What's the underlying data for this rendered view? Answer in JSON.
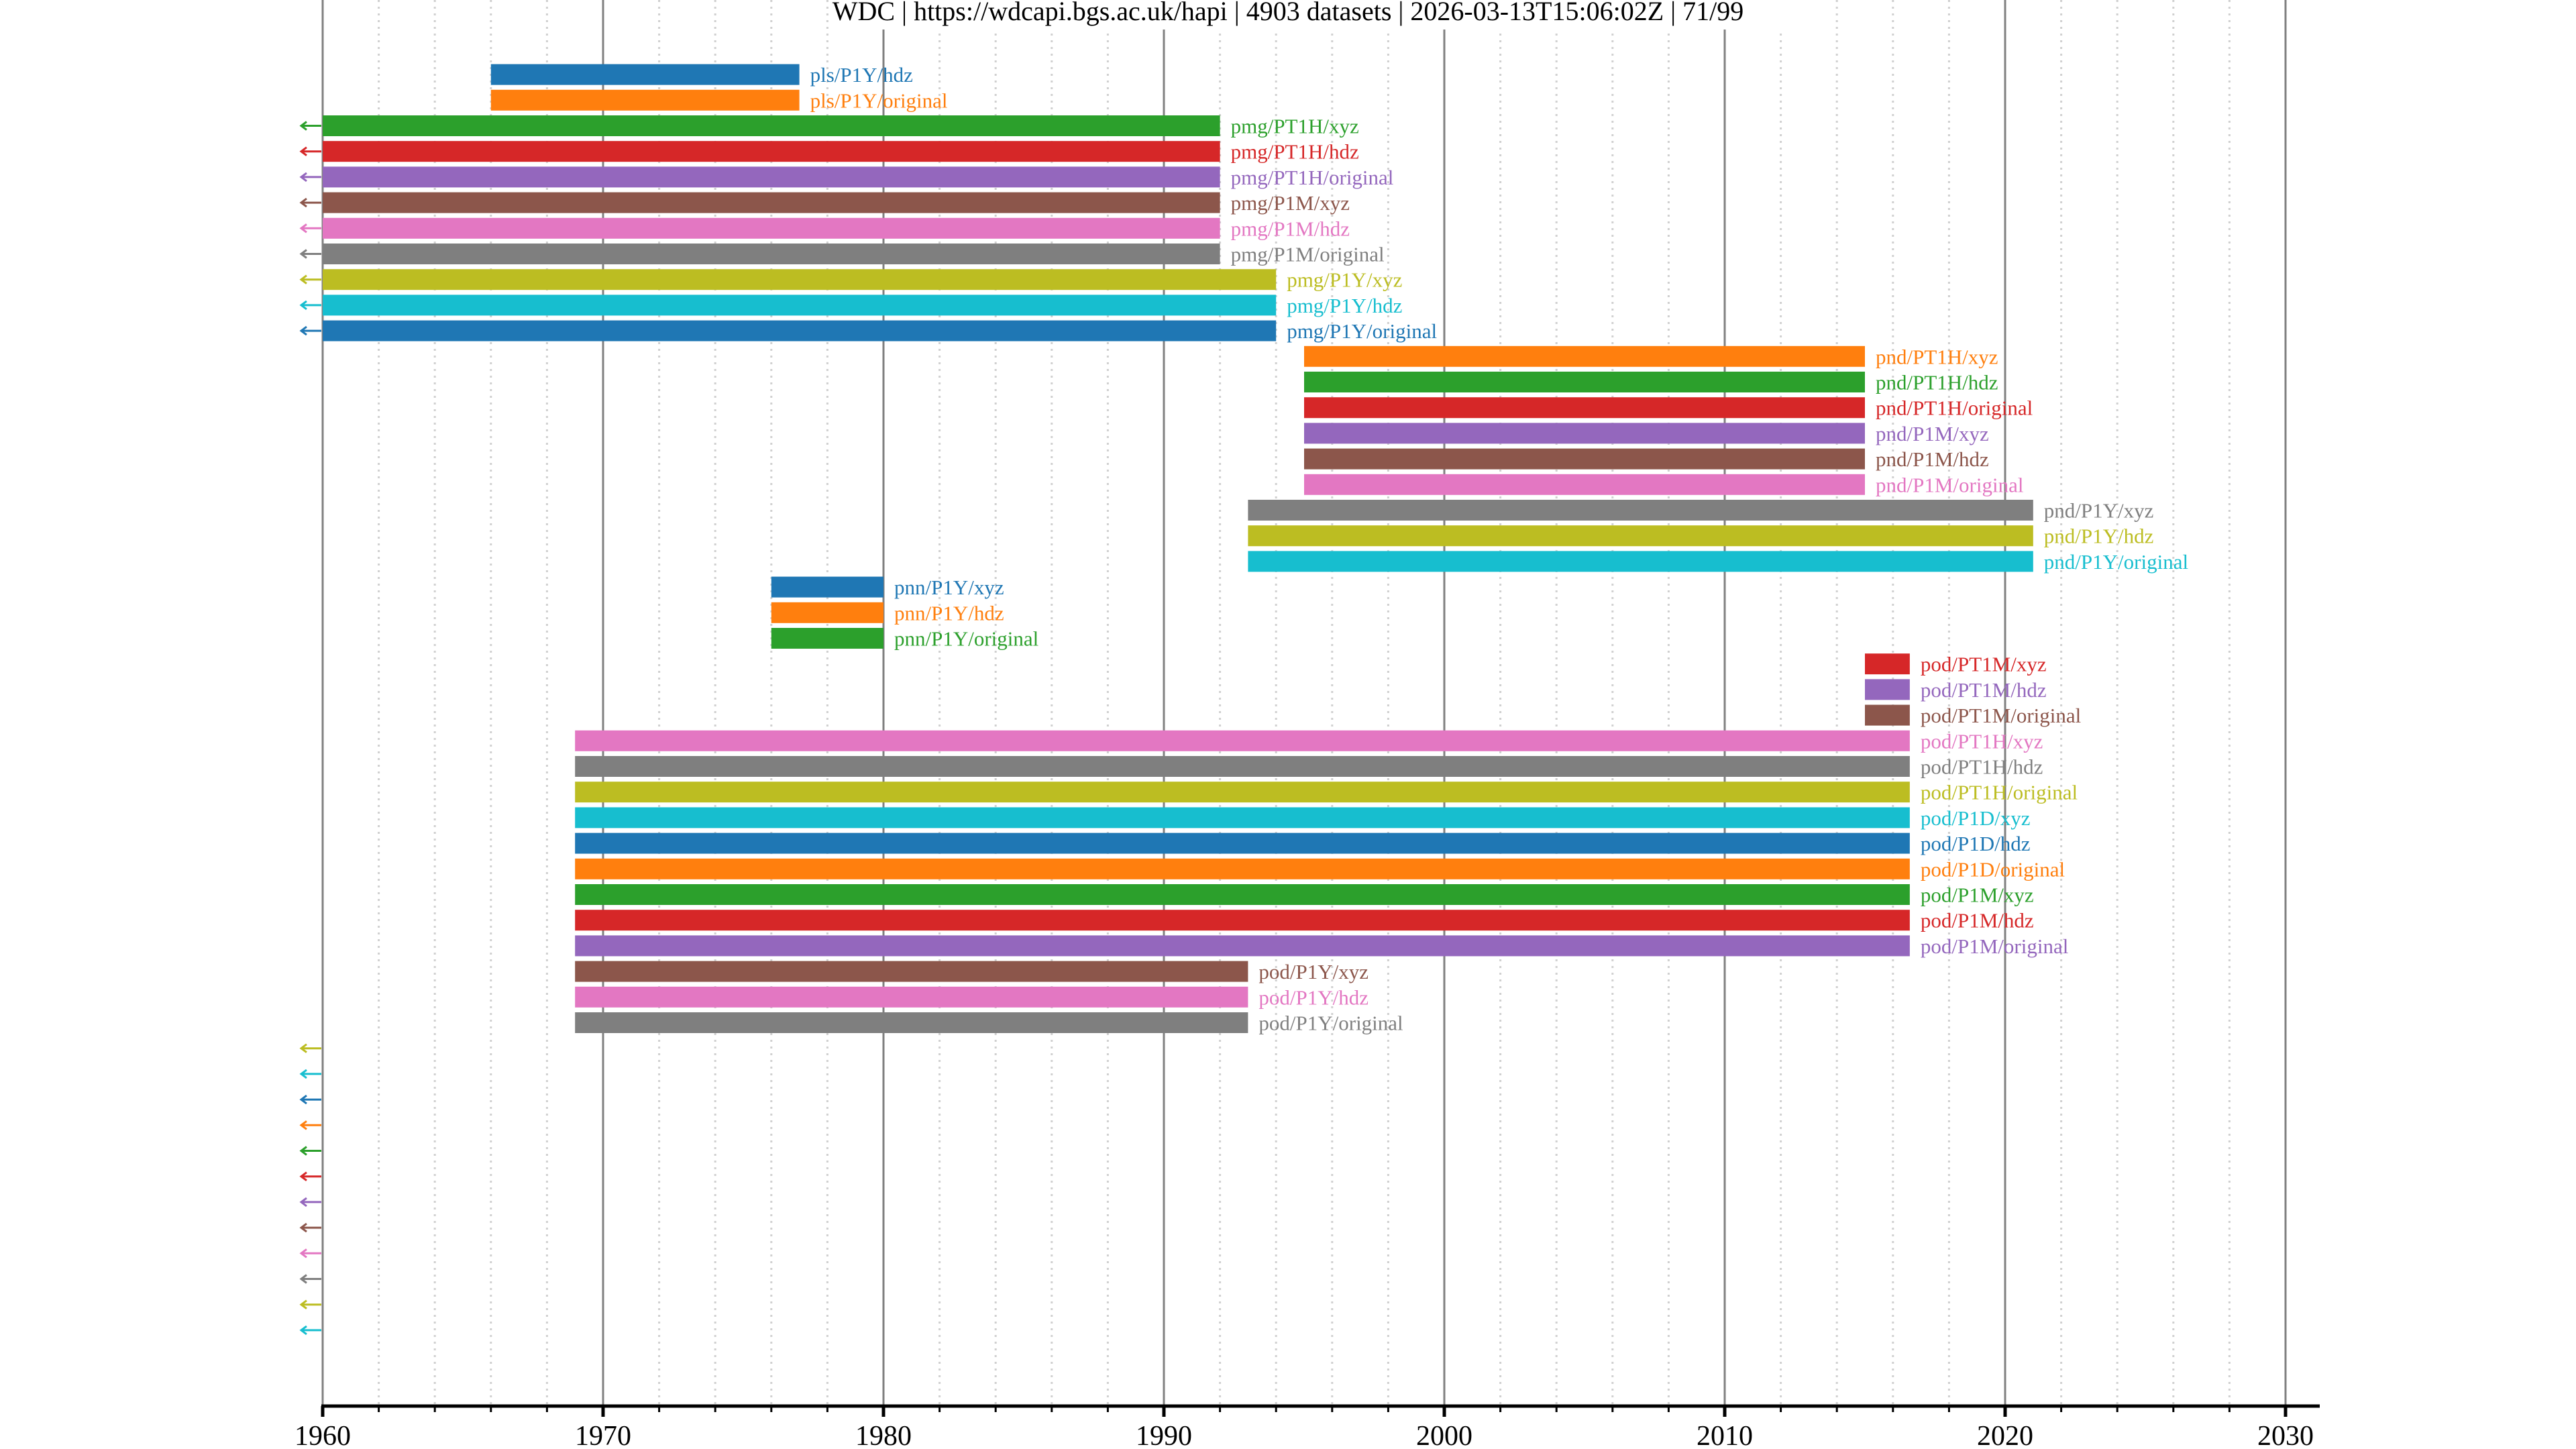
{
  "title": {
    "parts": [
      "WDC",
      "https://wdcapi.bgs.ac.uk/hapi",
      "4903 datasets",
      "2026-03-13T15:06:02Z",
      "71/99"
    ],
    "separator": " | "
  },
  "chart_data": {
    "type": "timeline",
    "title": "WDC | https://wdcapi.bgs.ac.uk/hapi | 4903 datasets | 2026-03-13T15:06:02Z | 71/99",
    "xlabel": "",
    "ylabel": "",
    "xlim": [
      1960,
      2031.2
    ],
    "x_major_ticks": [
      1960,
      1970,
      1980,
      1990,
      2000,
      2010,
      2020,
      2030
    ],
    "x_tick_labels": [
      "1960",
      "1970",
      "1980",
      "1990",
      "2000",
      "2010",
      "2020",
      "2030"
    ],
    "x_minor_step": 2,
    "grid": {
      "major": "solid",
      "minor": "dotted"
    },
    "palette": [
      "#1f77b4",
      "#ff7f0e",
      "#2ca02c",
      "#d62728",
      "#9467bd",
      "#8c564b",
      "#e377c2",
      "#7f7f7f",
      "#bcbd22",
      "#17becf"
    ],
    "off_left_marker": "left-arrow",
    "rows": [
      {
        "name": "pls/P1Y/hdz",
        "start": 1966.0,
        "stop": 1977.0
      },
      {
        "name": "pls/P1Y/original",
        "start": 1966.0,
        "stop": 1977.0
      },
      {
        "name": "pmg/PT1H/xyz",
        "start": null,
        "stop": 1992.0,
        "starts_before_axis": true
      },
      {
        "name": "pmg/PT1H/hdz",
        "start": null,
        "stop": 1992.0,
        "starts_before_axis": true
      },
      {
        "name": "pmg/PT1H/original",
        "start": null,
        "stop": 1992.0,
        "starts_before_axis": true
      },
      {
        "name": "pmg/P1M/xyz",
        "start": null,
        "stop": 1992.0,
        "starts_before_axis": true
      },
      {
        "name": "pmg/P1M/hdz",
        "start": null,
        "stop": 1992.0,
        "starts_before_axis": true
      },
      {
        "name": "pmg/P1M/original",
        "start": null,
        "stop": 1992.0,
        "starts_before_axis": true
      },
      {
        "name": "pmg/P1Y/xyz",
        "start": null,
        "stop": 1994.0,
        "starts_before_axis": true
      },
      {
        "name": "pmg/P1Y/hdz",
        "start": null,
        "stop": 1994.0,
        "starts_before_axis": true
      },
      {
        "name": "pmg/P1Y/original",
        "start": null,
        "stop": 1994.0,
        "starts_before_axis": true
      },
      {
        "name": "pnd/PT1H/xyz",
        "start": 1995.0,
        "stop": 2015.0
      },
      {
        "name": "pnd/PT1H/hdz",
        "start": 1995.0,
        "stop": 2015.0
      },
      {
        "name": "pnd/PT1H/original",
        "start": 1995.0,
        "stop": 2015.0
      },
      {
        "name": "pnd/P1M/xyz",
        "start": 1995.0,
        "stop": 2015.0
      },
      {
        "name": "pnd/P1M/hdz",
        "start": 1995.0,
        "stop": 2015.0
      },
      {
        "name": "pnd/P1M/original",
        "start": 1995.0,
        "stop": 2015.0
      },
      {
        "name": "pnd/P1Y/xyz",
        "start": 1993.0,
        "stop": 2021.0
      },
      {
        "name": "pnd/P1Y/hdz",
        "start": 1993.0,
        "stop": 2021.0
      },
      {
        "name": "pnd/P1Y/original",
        "start": 1993.0,
        "stop": 2021.0
      },
      {
        "name": "pnn/P1Y/xyz",
        "start": 1976.0,
        "stop": 1980.0
      },
      {
        "name": "pnn/P1Y/hdz",
        "start": 1976.0,
        "stop": 1980.0
      },
      {
        "name": "pnn/P1Y/original",
        "start": 1976.0,
        "stop": 1980.0
      },
      {
        "name": "pod/PT1M/xyz",
        "start": 2015.0,
        "stop": 2016.6
      },
      {
        "name": "pod/PT1M/hdz",
        "start": 2015.0,
        "stop": 2016.6
      },
      {
        "name": "pod/PT1M/original",
        "start": 2015.0,
        "stop": 2016.6
      },
      {
        "name": "pod/PT1H/xyz",
        "start": 1969.0,
        "stop": 2016.6
      },
      {
        "name": "pod/PT1H/hdz",
        "start": 1969.0,
        "stop": 2016.6
      },
      {
        "name": "pod/PT1H/original",
        "start": 1969.0,
        "stop": 2016.6
      },
      {
        "name": "pod/P1D/xyz",
        "start": 1969.0,
        "stop": 2016.6
      },
      {
        "name": "pod/P1D/hdz",
        "start": 1969.0,
        "stop": 2016.6
      },
      {
        "name": "pod/P1D/original",
        "start": 1969.0,
        "stop": 2016.6
      },
      {
        "name": "pod/P1M/xyz",
        "start": 1969.0,
        "stop": 2016.6
      },
      {
        "name": "pod/P1M/hdz",
        "start": 1969.0,
        "stop": 2016.6
      },
      {
        "name": "pod/P1M/original",
        "start": 1969.0,
        "stop": 2016.6
      },
      {
        "name": "pod/P1Y/xyz",
        "start": 1969.0,
        "stop": 1993.0
      },
      {
        "name": "pod/P1Y/hdz",
        "start": 1969.0,
        "stop": 1993.0
      },
      {
        "name": "pod/P1Y/original",
        "start": 1969.0,
        "stop": 1993.0
      },
      {
        "name": "",
        "start": null,
        "stop": null,
        "ends_before_axis": true
      },
      {
        "name": "",
        "start": null,
        "stop": null,
        "ends_before_axis": true
      },
      {
        "name": "",
        "start": null,
        "stop": null,
        "ends_before_axis": true
      },
      {
        "name": "",
        "start": null,
        "stop": null,
        "ends_before_axis": true
      },
      {
        "name": "",
        "start": null,
        "stop": null,
        "ends_before_axis": true
      },
      {
        "name": "",
        "start": null,
        "stop": null,
        "ends_before_axis": true
      },
      {
        "name": "",
        "start": null,
        "stop": null,
        "ends_before_axis": true
      },
      {
        "name": "",
        "start": null,
        "stop": null,
        "ends_before_axis": true
      },
      {
        "name": "",
        "start": null,
        "stop": null,
        "ends_before_axis": true
      },
      {
        "name": "",
        "start": null,
        "stop": null,
        "ends_before_axis": true
      },
      {
        "name": "",
        "start": null,
        "stop": null,
        "ends_before_axis": true
      },
      {
        "name": "",
        "start": null,
        "stop": null,
        "ends_before_axis": true
      }
    ]
  }
}
